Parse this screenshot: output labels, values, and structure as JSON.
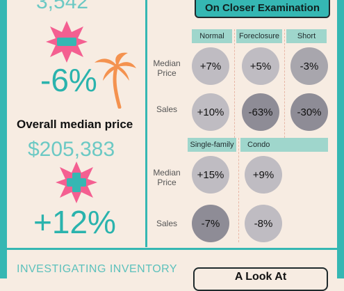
{
  "left": {
    "top_value": "3,542",
    "top_change": "-6%",
    "median_heading": "Overall median price",
    "median_value": "$205,383",
    "median_change": "+12%"
  },
  "right": {
    "title": "On Closer Examination",
    "table1": {
      "columns": [
        "Normal",
        "Foreclosure",
        "Short"
      ],
      "rows": [
        {
          "label": "Median Price",
          "values": [
            "+7%",
            "+5%",
            "-3%"
          ]
        },
        {
          "label": "Sales",
          "values": [
            "+10%",
            "-63%",
            "-30%"
          ]
        }
      ]
    },
    "table2": {
      "columns": [
        "Single-family",
        "Condo"
      ],
      "rows": [
        {
          "label": "Median Price",
          "values": [
            "+15%",
            "+9%"
          ]
        },
        {
          "label": "Sales",
          "values": [
            "-7%",
            "-8%"
          ]
        }
      ]
    }
  },
  "bottom": {
    "left_title": "INVESTIGATING INVENTORY",
    "right_title": "A Look At"
  },
  "colors": {
    "accent": "#35b7b3",
    "minus_star": "#f45f91",
    "plus_star": "#f45f91",
    "palm": "#f4924f"
  },
  "icons": [
    "minus-star-icon",
    "palm-tree-icon",
    "plus-star-icon"
  ]
}
